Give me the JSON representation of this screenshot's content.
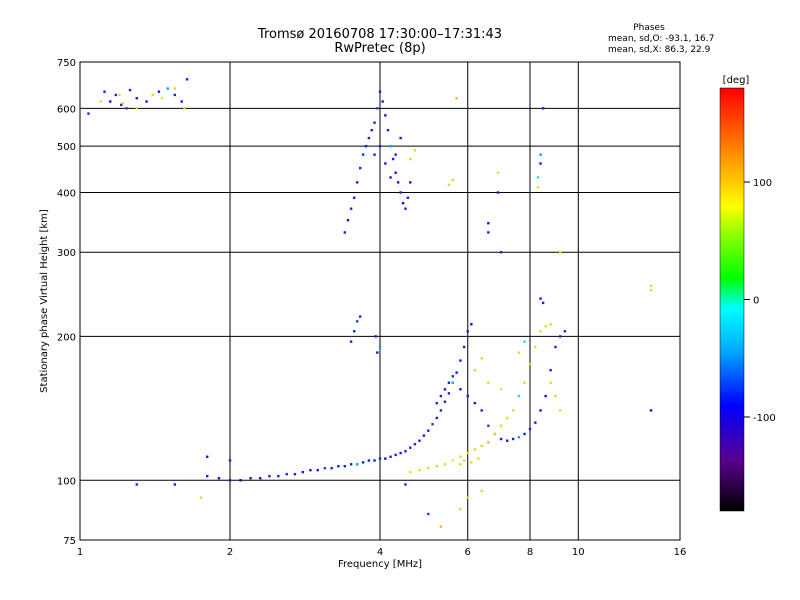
{
  "title_line1": "Tromsø 20160708 17:30:00–17:31:43",
  "title_line2": "RwPretec (8p)",
  "phases": {
    "title": "Phases",
    "o_line": "mean, sd,O: -93.1, 16.7",
    "x_line": "mean, sd,X: 86.3, 22.9"
  },
  "chart_data": {
    "type": "scatter",
    "xlabel": "Frequency [MHz]",
    "ylabel": "Stationary phase Virtual Height [km]",
    "x_scale": "log",
    "y_scale": "log",
    "xlim": [
      1,
      16
    ],
    "ylim": [
      75,
      750
    ],
    "x_ticks": [
      1,
      2,
      4,
      6,
      8,
      10,
      16
    ],
    "x_tick_labels": [
      "1",
      "2",
      "4",
      "6",
      "8",
      "10",
      "16"
    ],
    "y_ticks": [
      75,
      100,
      200,
      300,
      400,
      500,
      600,
      750
    ],
    "y_tick_labels": [
      "75",
      "100",
      "200",
      "300",
      "400",
      "500",
      "600",
      "750"
    ],
    "grid": true,
    "colorbar": {
      "label": "[deg]",
      "range": [
        -180,
        180
      ],
      "ticks": [
        100,
        0,
        -100
      ],
      "tick_labels": [
        "100",
        "0",
        "-100"
      ]
    },
    "series": [
      {
        "points": [
          [
            1.04,
            585
          ],
          [
            1.12,
            650
          ],
          [
            1.15,
            620
          ],
          [
            1.18,
            640
          ],
          [
            1.21,
            610
          ],
          [
            1.24,
            600
          ],
          [
            1.26,
            655
          ],
          [
            1.3,
            630
          ],
          [
            1.36,
            620
          ],
          [
            1.44,
            650
          ],
          [
            1.5,
            660
          ],
          [
            1.55,
            640
          ],
          [
            1.6,
            620
          ],
          [
            1.64,
            690
          ],
          [
            3.4,
            330
          ],
          [
            3.45,
            350
          ],
          [
            3.5,
            370
          ],
          [
            3.55,
            390
          ],
          [
            3.6,
            420
          ],
          [
            3.65,
            450
          ],
          [
            3.7,
            480
          ],
          [
            3.75,
            500
          ],
          [
            3.8,
            520
          ],
          [
            3.85,
            540
          ],
          [
            3.9,
            560
          ],
          [
            3.95,
            600
          ],
          [
            4.0,
            650
          ],
          [
            4.05,
            620
          ],
          [
            4.1,
            580
          ],
          [
            4.15,
            540
          ],
          [
            4.2,
            500
          ],
          [
            4.25,
            470
          ],
          [
            4.3,
            440
          ],
          [
            4.35,
            420
          ],
          [
            4.4,
            400
          ],
          [
            4.45,
            380
          ],
          [
            4.5,
            370
          ],
          [
            4.55,
            390
          ],
          [
            4.6,
            420
          ],
          [
            3.9,
            480
          ],
          [
            4.0,
            500
          ],
          [
            4.1,
            460
          ],
          [
            4.2,
            430
          ],
          [
            4.3,
            480
          ],
          [
            4.4,
            520
          ],
          [
            3.6,
            215
          ],
          [
            3.65,
            220
          ],
          [
            3.55,
            205
          ],
          [
            3.5,
            195
          ],
          [
            3.95,
            185
          ],
          [
            4.0,
            190
          ],
          [
            3.92,
            200
          ],
          [
            1.8,
            102
          ],
          [
            1.9,
            101
          ],
          [
            2.0,
            100
          ],
          [
            2.1,
            100
          ],
          [
            2.2,
            101
          ],
          [
            2.3,
            101
          ],
          [
            2.4,
            102
          ],
          [
            2.5,
            102
          ],
          [
            2.6,
            103
          ],
          [
            2.7,
            103
          ],
          [
            2.8,
            104
          ],
          [
            2.9,
            105
          ],
          [
            3.0,
            105
          ],
          [
            3.1,
            106
          ],
          [
            3.2,
            106
          ],
          [
            3.3,
            107
          ],
          [
            3.4,
            107
          ],
          [
            3.5,
            108
          ],
          [
            3.6,
            108
          ],
          [
            3.7,
            109
          ],
          [
            3.8,
            110
          ],
          [
            3.9,
            110
          ],
          [
            4.0,
            111
          ],
          [
            4.1,
            111
          ],
          [
            4.2,
            112
          ],
          [
            4.3,
            113
          ],
          [
            4.4,
            114
          ],
          [
            4.5,
            115
          ],
          [
            4.6,
            117
          ],
          [
            4.7,
            119
          ],
          [
            4.8,
            121
          ],
          [
            4.9,
            124
          ],
          [
            5.0,
            127
          ],
          [
            5.1,
            131
          ],
          [
            5.2,
            135
          ],
          [
            5.3,
            140
          ],
          [
            5.4,
            146
          ],
          [
            5.5,
            152
          ],
          [
            5.6,
            160
          ],
          [
            5.7,
            168
          ],
          [
            5.8,
            178
          ],
          [
            5.9,
            190
          ],
          [
            6.0,
            205
          ],
          [
            6.1,
            212
          ],
          [
            5.2,
            145
          ],
          [
            5.3,
            150
          ],
          [
            5.4,
            155
          ],
          [
            5.5,
            160
          ],
          [
            5.6,
            165
          ],
          [
            5.8,
            155
          ],
          [
            6.0,
            150
          ],
          [
            6.2,
            145
          ],
          [
            6.4,
            140
          ],
          [
            6.6,
            130
          ],
          [
            6.8,
            125
          ],
          [
            7.0,
            122
          ],
          [
            7.2,
            121
          ],
          [
            7.4,
            122
          ],
          [
            7.6,
            123
          ],
          [
            7.8,
            125
          ],
          [
            8.0,
            128
          ],
          [
            8.2,
            132
          ],
          [
            8.4,
            140
          ],
          [
            8.6,
            150
          ],
          [
            8.8,
            170
          ],
          [
            9.0,
            190
          ],
          [
            9.2,
            200
          ],
          [
            9.4,
            205
          ],
          [
            1.3,
            98
          ],
          [
            1.55,
            98
          ],
          [
            1.8,
            112
          ],
          [
            2.0,
            110
          ],
          [
            4.5,
            98
          ],
          [
            5.0,
            85
          ],
          [
            7.0,
            300
          ],
          [
            6.6,
            330
          ],
          [
            6.6,
            345
          ],
          [
            8.4,
            460
          ],
          [
            8.4,
            480
          ],
          [
            8.5,
            600
          ],
          [
            6.9,
            400
          ],
          [
            8.5,
            235
          ],
          [
            8.4,
            240
          ],
          [
            14.0,
            140
          ]
        ]
      },
      {
        "points": [
          [
            1.1,
            620
          ],
          [
            1.2,
            640
          ],
          [
            1.22,
            615
          ],
          [
            1.3,
            600
          ],
          [
            1.4,
            640
          ],
          [
            1.46,
            630
          ],
          [
            1.55,
            660
          ],
          [
            1.62,
            600
          ],
          [
            4.6,
            470
          ],
          [
            4.7,
            490
          ],
          [
            5.7,
            630
          ],
          [
            5.6,
            425
          ],
          [
            5.5,
            415
          ],
          [
            6.9,
            440
          ],
          [
            8.3,
            410
          ],
          [
            8.3,
            430
          ],
          [
            9.2,
            300
          ],
          [
            14.0,
            250
          ],
          [
            14.0,
            255
          ],
          [
            1.75,
            92
          ],
          [
            4.6,
            104
          ],
          [
            4.8,
            105
          ],
          [
            5.0,
            106
          ],
          [
            5.2,
            107
          ],
          [
            5.4,
            108
          ],
          [
            5.6,
            110
          ],
          [
            5.8,
            112
          ],
          [
            6.0,
            114
          ],
          [
            6.2,
            116
          ],
          [
            6.4,
            118
          ],
          [
            6.6,
            120
          ],
          [
            6.8,
            125
          ],
          [
            7.0,
            130
          ],
          [
            7.2,
            135
          ],
          [
            7.4,
            140
          ],
          [
            7.6,
            150
          ],
          [
            7.8,
            160
          ],
          [
            8.0,
            175
          ],
          [
            8.2,
            190
          ],
          [
            8.4,
            205
          ],
          [
            8.6,
            210
          ],
          [
            8.8,
            212
          ],
          [
            6.2,
            170
          ],
          [
            6.4,
            180
          ],
          [
            6.6,
            160
          ],
          [
            7.0,
            155
          ],
          [
            5.8,
            108
          ],
          [
            5.9,
            110
          ],
          [
            6.1,
            109
          ],
          [
            6.3,
            111
          ],
          [
            5.3,
            80
          ],
          [
            5.8,
            87
          ],
          [
            6.0,
            92
          ],
          [
            6.4,
            95
          ],
          [
            7.6,
            185
          ],
          [
            7.8,
            195
          ],
          [
            8.8,
            160
          ],
          [
            9.0,
            150
          ],
          [
            9.2,
            140
          ]
        ]
      }
    ]
  }
}
